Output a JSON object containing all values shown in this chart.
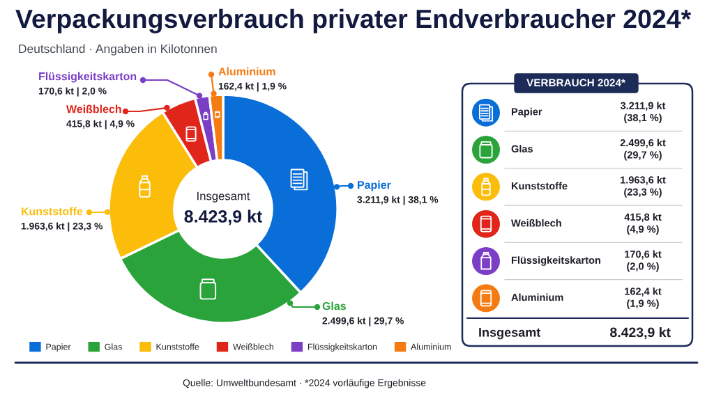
{
  "chart_data": [
    {
      "type": "donut",
      "title": "Verpackungsverbrauch privater Endverbraucher 2024*",
      "subtitle": "Deutschland · Angaben in Kilotonnen",
      "categories": [
        "Papier",
        "Glas",
        "Kunststoffe",
        "Weißblech",
        "Flüssigkeitskarton",
        "Aluminium"
      ],
      "values": [
        3211.9,
        2499.6,
        1963.6,
        415.8,
        170.6,
        162.4
      ],
      "colors": [
        "#0a6ed8",
        "#2aa33a",
        "#fbbd0a",
        "#e0251b",
        "#7b3fc6",
        "#f47b12"
      ],
      "value_labels": [
        "3.211,9 kt | 38,1 %",
        "2.499,6 kt | 29,7 %",
        "1.963,6 kt | 23,3 %",
        "415,8 kt | 4,9 %",
        "170,6 kt | 2,0 %",
        "162,4 kt | 1,9 %"
      ],
      "legend": "bottom",
      "annotations": [
        "Insgesamt",
        "8.423,9 kt",
        "Quelle: Umweltbundesamt · *2024 vorläufige Ergebnisse"
      ]
    },
    {
      "type": "other",
      "title": "VERBRAUCH 2024*",
      "categories": [
        "Papier",
        "Glas",
        "Kunststoffe",
        "Weißblech",
        "Flüssigkeitskarton",
        "Aluminium"
      ],
      "colors": [
        "#0a6ed8",
        "#2aa33a",
        "#fbbd0a",
        "#e0251b",
        "#7b3fc6",
        "#f47b12"
      ],
      "value_labels": [
        "3.211,9 kt\n(38,1 %)",
        "2.499,6 kt\n(29,7 %)",
        "1.963,6 kt\n(23,3 %)",
        "415,8 kt\n(4,9 %)",
        "170,6 kt\n(2,0 %)",
        "162,4 kt\n(1,9 %)"
      ],
      "annotations": [
        "Insgesamt",
        "8.423,9 kt"
      ]
    }
  ]
}
